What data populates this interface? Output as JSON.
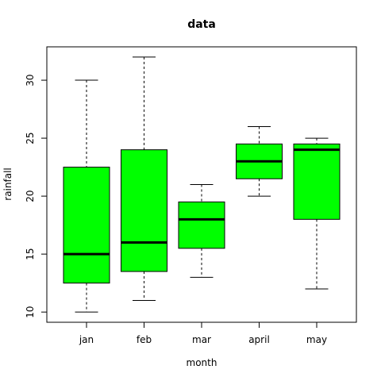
{
  "chart_data": {
    "type": "boxplot",
    "title": "data",
    "xlabel": "month",
    "ylabel": "rainfall",
    "categories": [
      "jan",
      "feb",
      "mar",
      "april",
      "may"
    ],
    "boxes": [
      {
        "category": "jan",
        "min": 10,
        "q1": 12.5,
        "median": 15,
        "q3": 22.5,
        "max": 30
      },
      {
        "category": "feb",
        "min": 11,
        "q1": 13.5,
        "median": 16,
        "q3": 24,
        "max": 32
      },
      {
        "category": "mar",
        "min": 13,
        "q1": 15.5,
        "median": 18,
        "q3": 19.5,
        "max": 21
      },
      {
        "category": "april",
        "min": 20,
        "q1": 21.5,
        "median": 23,
        "q3": 24.5,
        "max": 26
      },
      {
        "category": "may",
        "min": 12,
        "q1": 18,
        "median": 24,
        "q3": 24.5,
        "max": 25
      }
    ],
    "y_ticks": [
      10,
      15,
      20,
      25,
      30
    ],
    "ylim": [
      9.12,
      32.88
    ],
    "box_color": "#00ff00",
    "grid": false,
    "legend": "none"
  }
}
